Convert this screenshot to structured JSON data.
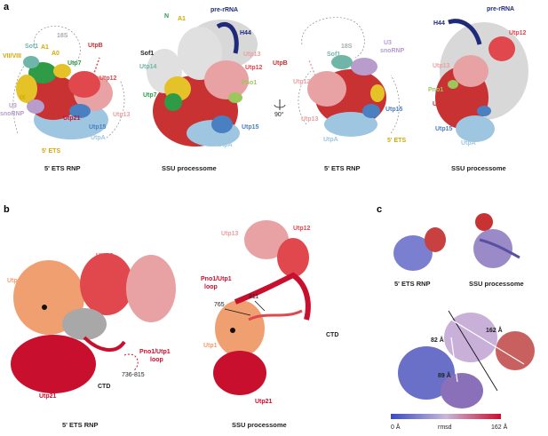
{
  "panels": {
    "a": {
      "letter": "a",
      "captions": [
        "5' ETS RNP",
        "SSU processome",
        "5' ETS RNP",
        "SSU processome"
      ],
      "rotation": "90°",
      "labels": {
        "s1_18s": "18S",
        "s1_vii": "VII/VIII",
        "s1_sof1": "Sof1",
        "s1_a1": "A1",
        "s1_a0": "A0",
        "s1_utp7": "Utp7",
        "s1_utpb": "UtpB",
        "s1_ix": "IX",
        "s1_u3": "U3",
        "s1_snorna": "snoRNP",
        "s1_utp12": "Utp12",
        "s1_utp21": "Utp21",
        "s1_utp13": "Utp13",
        "s1_utp15": "Utp15",
        "s1_utpa": "UtpA",
        "s1_5ets": "5' ETS",
        "s2_n": "N",
        "s2_a1": "A1",
        "s2_prerrna": "pre-rRNA",
        "s2_h44": "H44",
        "s2_sof1": "Sof1",
        "s2_utp14": "Utp14",
        "s2_utp13": "Utp13",
        "s2_utp12": "Utp12",
        "s2_pno1": "Pno1",
        "s2_utp7": "Utp7",
        "s2_utp15": "Utp15",
        "s2_utpa": "UtpA",
        "s2_utpb": "UtpB",
        "s3_18s": "18S",
        "s3_u3": "U3",
        "s3_snorna": "snoRNP",
        "s3_sof1": "Sof1",
        "s3_utp12": "Utp12",
        "s3_utp13": "Utp13",
        "s3_utp15": "Utp15",
        "s3_utpa": "UtpA",
        "s3_5ets": "5' ETS",
        "s4_h44": "H44",
        "s4_prerrna": "pre-rRNA",
        "s4_utp12": "Utp12",
        "s4_utp13": "Utp13",
        "s4_pno1": "Pno1",
        "s4_utpb": "UtpB",
        "s4_utp15": "Utp15",
        "s4_utpa": "UtpA"
      }
    },
    "b": {
      "letter": "b",
      "captions": [
        "5' ETS RNP",
        "SSU processome"
      ],
      "labels": {
        "l_utp12": "Utp12",
        "l_utp13": "Utp13",
        "l_utp1": "Utp1",
        "l_pno1": "Pno1/Utp1",
        "l_loop": "loop",
        "l_range": "736-815",
        "l_ctd": "CTD",
        "l_utp21": "Utp21",
        "r_utp13": "Utp13",
        "r_utp12": "Utp12",
        "r_pno1": "Pno1/Utp1",
        "r_loop": "loop",
        "r_811": "811",
        "r_765": "765",
        "r_ctd": "CTD",
        "r_utp1": "Utp1",
        "r_utp21": "Utp21"
      }
    },
    "c": {
      "letter": "c",
      "captions": [
        "5' ETS RNP",
        "SSU processome"
      ],
      "angles": [
        "162 Å",
        "82 Å",
        "89 Å"
      ],
      "colorbar": {
        "min": "0 Å",
        "label": "rmsd",
        "max": "162 Å",
        "low_color": "#3b4cc0",
        "high_color": "#c8102e"
      }
    }
  },
  "colors": {
    "utp12": "#e0484d",
    "utp13": "#e8a2a4",
    "utp1": "#f0a070",
    "utp21": "#c8102e",
    "utpa": "#9ec6e0",
    "utpb": "#c83232",
    "utp15": "#4a7fc1",
    "utp7": "#2e9c46",
    "ets": "#e6c229",
    "u3": "#b79ccc",
    "sof1": "#6fb5a8",
    "prerrna": "#1f2a7a",
    "pno1": "#9cc75c",
    "grey": "#c8c8c8"
  }
}
